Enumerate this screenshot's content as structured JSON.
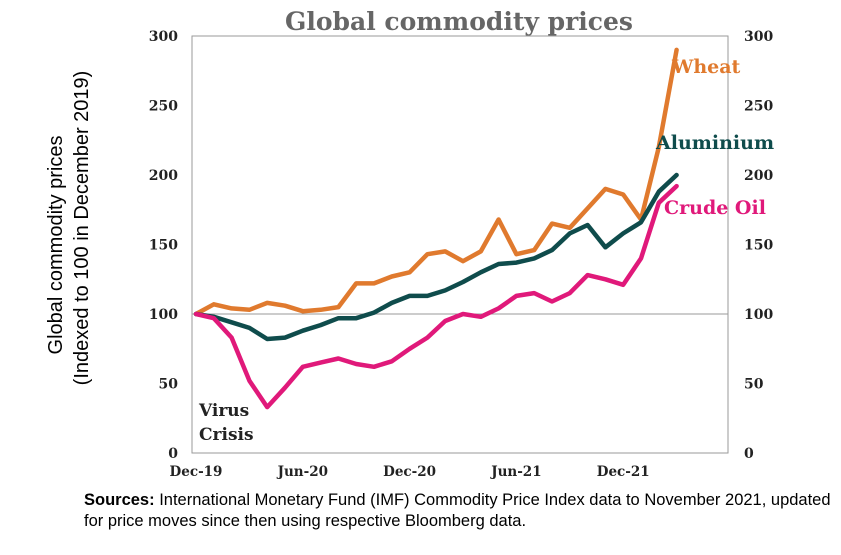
{
  "chart_data": {
    "type": "line",
    "title": "Global commodity prices",
    "ylabel_lines": [
      "Global commodity prices",
      "(Indexed to 100 in December 2019)"
    ],
    "x_tick_labels": [
      "Dec-19",
      "Jun-20",
      "Dec-20",
      "Jun-21",
      "Dec-21"
    ],
    "x_tick_index": [
      0,
      6,
      12,
      18,
      24
    ],
    "y_ticks": [
      0,
      50,
      100,
      150,
      200,
      250,
      300
    ],
    "ylim": [
      0,
      300
    ],
    "reference_line": 100,
    "grid": false,
    "x_months": 27,
    "series": [
      {
        "name": "Wheat",
        "color": "#e07a2e",
        "values": [
          100,
          107,
          104,
          103,
          108,
          106,
          102,
          103,
          105,
          122,
          122,
          127,
          130,
          143,
          145,
          138,
          145,
          168,
          143,
          146,
          165,
          162,
          176,
          190,
          186,
          168,
          220,
          290
        ]
      },
      {
        "name": "Aluminium",
        "color": "#0f4c4c",
        "values": [
          100,
          98,
          94,
          90,
          82,
          83,
          88,
          92,
          97,
          97,
          101,
          108,
          113,
          113,
          117,
          123,
          130,
          136,
          137,
          140,
          146,
          158,
          164,
          148,
          158,
          166,
          188,
          200
        ]
      },
      {
        "name": "Crude Oil",
        "color": "#e0197a",
        "values": [
          100,
          97,
          83,
          52,
          33,
          47,
          62,
          65,
          68,
          64,
          62,
          66,
          75,
          83,
          95,
          100,
          98,
          104,
          113,
          115,
          109,
          115,
          128,
          125,
          121,
          140,
          180,
          192
        ]
      }
    ],
    "annotation": [
      "Virus",
      "Crisis"
    ]
  },
  "sources": {
    "label": "Sources:",
    "text": " International Monetary Fund (IMF) Commodity Price Index data to November 2021, updated for price moves since then using respective Bloomberg data."
  }
}
